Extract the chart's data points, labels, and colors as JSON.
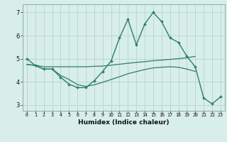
{
  "xlabel": "Humidex (Indice chaleur)",
  "x_values": [
    0,
    1,
    2,
    3,
    4,
    5,
    6,
    7,
    8,
    9,
    10,
    11,
    12,
    13,
    14,
    15,
    16,
    17,
    18,
    19,
    20,
    21,
    22,
    23
  ],
  "main_line_y": [
    5.0,
    4.7,
    4.55,
    4.55,
    4.2,
    3.9,
    3.75,
    3.75,
    4.05,
    4.45,
    4.9,
    5.9,
    6.7,
    5.6,
    6.5,
    7.0,
    6.6,
    5.9,
    5.7,
    5.1,
    4.65,
    3.3,
    3.05,
    3.35
  ],
  "trend_upper_x": [
    0,
    1,
    2,
    3,
    4,
    5,
    6,
    7,
    8,
    9,
    10,
    11,
    12,
    13,
    14,
    15,
    16,
    17,
    18,
    19,
    20
  ],
  "trend_upper_y": [
    4.75,
    4.72,
    4.65,
    4.65,
    4.65,
    4.65,
    4.65,
    4.65,
    4.67,
    4.68,
    4.72,
    4.76,
    4.8,
    4.84,
    4.87,
    4.91,
    4.94,
    4.97,
    5.0,
    5.04,
    5.1
  ],
  "trend_lower_x": [
    0,
    1,
    2,
    3,
    4,
    5,
    6,
    7,
    8,
    9,
    10,
    11,
    12,
    13,
    14,
    15,
    16,
    17,
    18,
    19,
    20
  ],
  "trend_lower_y": [
    4.75,
    4.7,
    4.55,
    4.55,
    4.28,
    4.1,
    3.88,
    3.8,
    3.87,
    3.98,
    4.1,
    4.22,
    4.35,
    4.44,
    4.53,
    4.6,
    4.63,
    4.65,
    4.63,
    4.55,
    4.45
  ],
  "line_color": "#2e7d6e",
  "bg_color": "#d8eee8",
  "grid_color": "#b0cfc8",
  "ylim": [
    2.75,
    7.35
  ],
  "yticks": [
    3,
    4,
    5,
    6,
    7
  ],
  "xlim": [
    -0.5,
    23.5
  ]
}
